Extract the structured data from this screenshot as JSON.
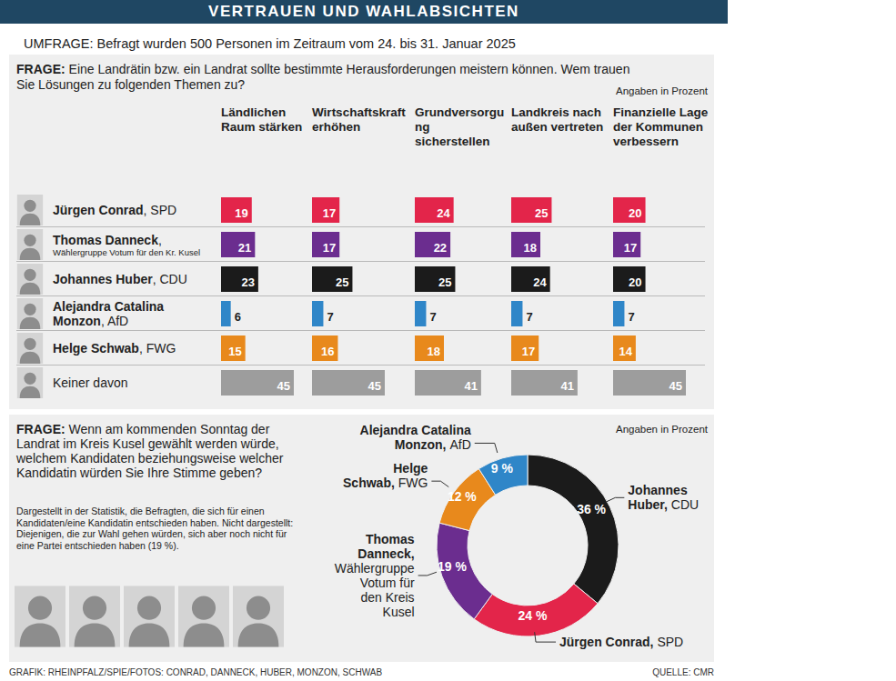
{
  "header": {
    "title": "VERTRAUEN UND WAHLABSICHTEN",
    "survey": "UMFRAGE: Befragt wurden 500 Personen im Zeitraum vom 24. bis 31. Januar 2025"
  },
  "chart_data": [
    {
      "type": "bar",
      "orientation": "horizontal",
      "title": "FRAGE: Eine Landrätin bzw. ein Landrat sollte bestimmte Herausforderungen meistern können. Wem trauen Sie Lösungen zu folgenden Themen zu?",
      "subtitle": "Angaben in Prozent",
      "categories": [
        "Ländlichen Raum stärken",
        "Wirtschaftskraft erhöhen",
        "Grundversorgung sicherstellen",
        "Landkreis nach außen vertreten",
        "Finanzielle Lage der Kommunen verbessern"
      ],
      "series": [
        {
          "name": "Jürgen Conrad",
          "label": "Jürgen Conrad, SPD",
          "color": "#e3254a",
          "values": [
            19,
            17,
            24,
            25,
            20
          ]
        },
        {
          "name": "Thomas Danneck",
          "label": "Thomas Danneck, Wählergruppe Votum für den Kr. Kusel",
          "color": "#6b2d8f",
          "values": [
            21,
            17,
            22,
            18,
            17
          ]
        },
        {
          "name": "Johannes Huber",
          "label": "Johannes Huber, CDU",
          "color": "#1b1b1b",
          "values": [
            23,
            25,
            25,
            24,
            20
          ]
        },
        {
          "name": "Alejandra Catalina Monzon",
          "label": "Alejandra Catalina Monzon, AfD",
          "color": "#2f86c8",
          "values": [
            6,
            7,
            7,
            7,
            7
          ]
        },
        {
          "name": "Helge Schwab",
          "label": "Helge Schwab, FWG",
          "color": "#e8891c",
          "values": [
            15,
            16,
            18,
            17,
            14
          ]
        },
        {
          "name": "Keiner davon",
          "label": "Keiner davon",
          "color": "#9d9d9d",
          "values": [
            45,
            45,
            41,
            41,
            45
          ]
        }
      ],
      "xlim": [
        0,
        45
      ],
      "tick_labels": false,
      "data_labels": true
    },
    {
      "type": "pie",
      "title": "FRAGE: Wenn am kommenden Sonntag der Landrat im Kreis Kusel gewählt werden würde, welchem Kandidaten beziehungsweise welcher Kandidatin würden Sie Ihre Stimme geben?",
      "subtitle": "Angaben in Prozent",
      "note": "Dargestellt in der Statistik, die Befragten, die sich für einen Kandidaten/eine Kandidatin entschieden haben. Nicht dargestellt: Diejenigen, die zur Wahl gehen würden, sich aber noch nicht für eine Partei entschieden haben (19 %).",
      "categories": [
        "Johannes Huber",
        "Jürgen Conrad",
        "Thomas Danneck",
        "Helge Schwab",
        "Alejandra Catalina Monzon"
      ],
      "labels": [
        "Johannes Huber, CDU",
        "Jürgen Conrad, SPD",
        "Thomas Danneck, Wählergruppe Votum für den Kreis Kusel",
        "Helge Schwab, FWG",
        "Alejandra Catalina Monzon, AfD"
      ],
      "values": [
        36,
        24,
        19,
        12,
        9
      ],
      "value_labels": [
        "36 %",
        "24 %",
        "19 %",
        "12 %",
        "9 %"
      ],
      "colors": [
        "#1b1b1b",
        "#e3254a",
        "#6b2d8f",
        "#e8891c",
        "#2f86c8"
      ],
      "data_labels": true
    }
  ],
  "footer": {
    "credit": "GRAFIK: RHEINPFALZ/SPIE/FOTOS: CONRAD, DANNECK, HUBER, MONZON, SCHWAB",
    "source": "QUELLE: CMR"
  }
}
